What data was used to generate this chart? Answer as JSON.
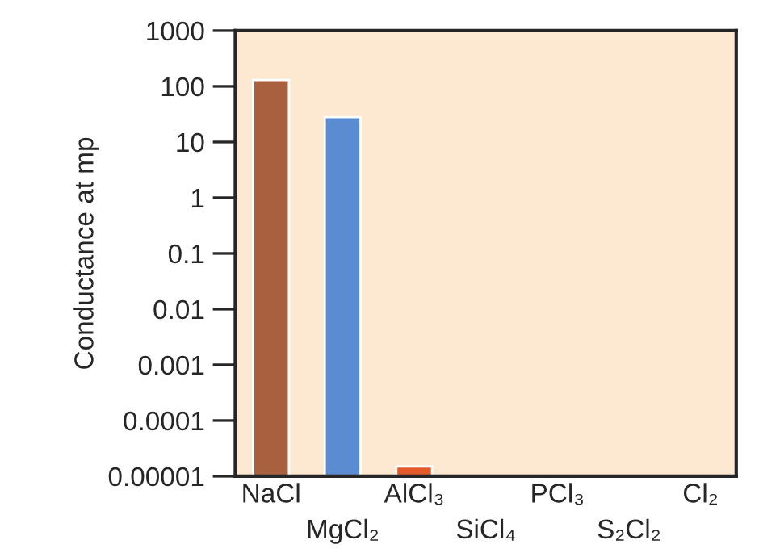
{
  "chart_data": {
    "type": "bar",
    "ylabel": "Conductance at mp",
    "log": true,
    "categories": [
      "NaCl",
      "MgCl₂",
      "AlCl₃",
      "SiCl₄",
      "PCl₃",
      "S₂Cl₂",
      "Cl₂"
    ],
    "values": [
      130,
      28,
      1.5e-05,
      null,
      null,
      null,
      null
    ],
    "colors": [
      "#a8603e",
      "#5b8bd0",
      "#e05a2a",
      "#a8603e",
      "#a8603e",
      "#a8603e",
      "#a8603e"
    ],
    "ylim": [
      1e-05,
      1000
    ],
    "yticks": [
      1000,
      100,
      10,
      1,
      0.1,
      0.01,
      0.001,
      0.0001,
      {
        "value": 1e-05,
        "label": "0.00001"
      }
    ],
    "grid": false
  }
}
